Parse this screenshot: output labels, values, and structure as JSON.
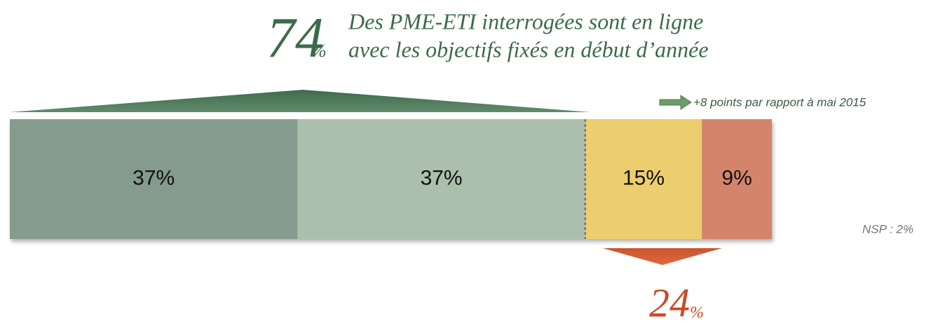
{
  "chart_data": {
    "type": "stacked_bar",
    "values": [
      37,
      37,
      15,
      9
    ],
    "value_labels": [
      "37%",
      "37%",
      "15%",
      "9%"
    ],
    "colors": [
      "#849b8e",
      "#abbfac",
      "#ecce6e",
      "#d5846c"
    ],
    "xlim": [
      0,
      98
    ],
    "headline_number": "74",
    "headline_unit": "%",
    "headline_text": [
      "Des PME-ETI interrogées sont en ligne",
      "avec les objectifs fixés en début d’année"
    ],
    "comparison": "+8 points par rapport à mai 2015",
    "note": "NSP : 2%",
    "bottom_number": "24",
    "bottom_unit": "%"
  }
}
